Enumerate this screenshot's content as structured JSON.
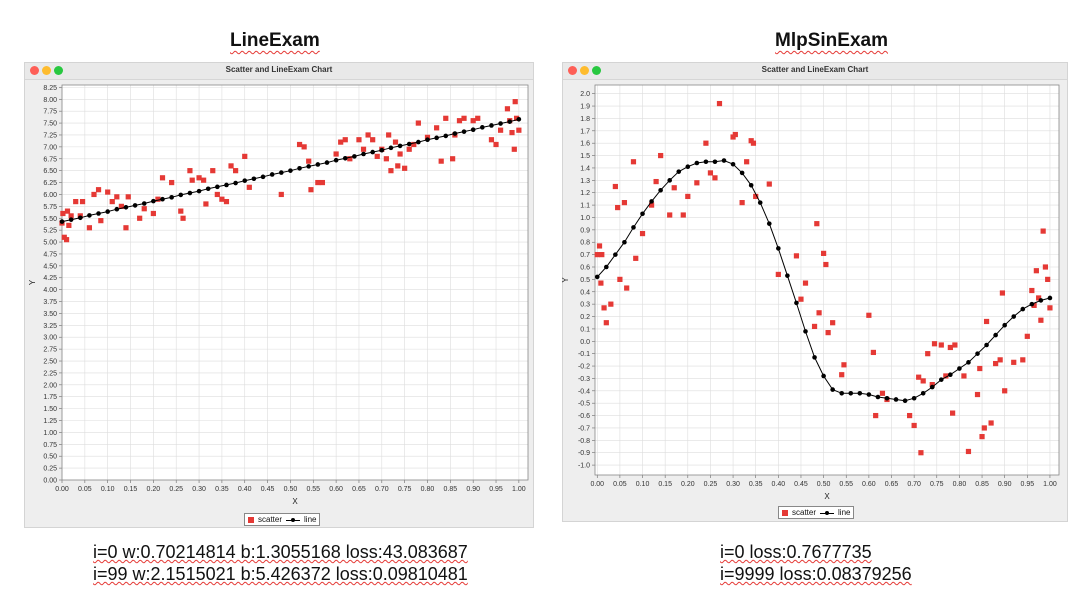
{
  "left": {
    "heading": "LineExam",
    "window_title": "Scatter and LineExam Chart",
    "caption_lines": [
      "i=0 w:0.70214814 b:1.3055168 loss:43.083687",
      "i=99 w:2.1515021 b:5.426372 loss:0.09810481"
    ]
  },
  "right": {
    "heading": "MlpSinExam",
    "window_title": "Scatter and LineExam Chart",
    "caption_lines": [
      "i=0 loss:0.7677735",
      "i=9999 loss:0.08379256"
    ]
  },
  "colors": {
    "scatter": "#e53935",
    "line": "#000000",
    "plot_bg": "#ffffff",
    "grid": "#dddddd"
  },
  "chart_data": [
    {
      "type": "scatter",
      "title": "Scatter and LineExam Chart",
      "xlabel": "X",
      "ylabel": "Y",
      "xlim": [
        0,
        1.02
      ],
      "ylim": [
        0,
        8.3
      ],
      "xticks": [
        "0.00",
        "0.05",
        "0.10",
        "0.15",
        "0.20",
        "0.25",
        "0.30",
        "0.35",
        "0.40",
        "0.45",
        "0.50",
        "0.55",
        "0.60",
        "0.65",
        "0.70",
        "0.75",
        "0.80",
        "0.85",
        "0.90",
        "0.95",
        "1.00"
      ],
      "yticks": [
        "0.00",
        "0.25",
        "0.50",
        "0.75",
        "1.00",
        "1.25",
        "1.50",
        "1.75",
        "2.00",
        "2.25",
        "2.50",
        "2.75",
        "3.00",
        "3.25",
        "3.50",
        "3.75",
        "4.00",
        "4.25",
        "4.50",
        "4.75",
        "5.00",
        "5.25",
        "5.50",
        "5.75",
        "6.00",
        "6.25",
        "6.50",
        "6.75",
        "7.00",
        "7.25",
        "7.50",
        "7.75",
        "8.00",
        "8.25"
      ],
      "grid": true,
      "legend": "bottom-center",
      "series": [
        {
          "name": "scatter",
          "marker": "square",
          "points": [
            [
              0.0,
              5.4
            ],
            [
              0.002,
              5.6
            ],
            [
              0.005,
              5.1
            ],
            [
              0.01,
              5.05
            ],
            [
              0.012,
              5.65
            ],
            [
              0.015,
              5.35
            ],
            [
              0.02,
              5.55
            ],
            [
              0.03,
              5.85
            ],
            [
              0.04,
              5.55
            ],
            [
              0.045,
              5.85
            ],
            [
              0.06,
              5.3
            ],
            [
              0.07,
              6.0
            ],
            [
              0.08,
              6.1
            ],
            [
              0.085,
              5.45
            ],
            [
              0.1,
              6.05
            ],
            [
              0.11,
              5.85
            ],
            [
              0.12,
              5.95
            ],
            [
              0.13,
              5.75
            ],
            [
              0.14,
              5.3
            ],
            [
              0.145,
              5.95
            ],
            [
              0.17,
              5.5
            ],
            [
              0.18,
              5.7
            ],
            [
              0.2,
              5.6
            ],
            [
              0.21,
              5.9
            ],
            [
              0.22,
              6.35
            ],
            [
              0.24,
              6.25
            ],
            [
              0.26,
              5.65
            ],
            [
              0.265,
              5.5
            ],
            [
              0.28,
              6.5
            ],
            [
              0.285,
              6.3
            ],
            [
              0.3,
              6.35
            ],
            [
              0.31,
              6.3
            ],
            [
              0.315,
              5.8
            ],
            [
              0.33,
              6.5
            ],
            [
              0.34,
              6.0
            ],
            [
              0.35,
              5.9
            ],
            [
              0.36,
              5.85
            ],
            [
              0.37,
              6.6
            ],
            [
              0.38,
              6.5
            ],
            [
              0.4,
              6.8
            ],
            [
              0.41,
              6.15
            ],
            [
              0.48,
              6.0
            ],
            [
              0.52,
              7.05
            ],
            [
              0.53,
              7.0
            ],
            [
              0.54,
              6.7
            ],
            [
              0.545,
              6.1
            ],
            [
              0.56,
              6.25
            ],
            [
              0.57,
              6.25
            ],
            [
              0.6,
              6.85
            ],
            [
              0.61,
              7.1
            ],
            [
              0.62,
              7.15
            ],
            [
              0.63,
              6.75
            ],
            [
              0.65,
              7.15
            ],
            [
              0.66,
              6.95
            ],
            [
              0.67,
              7.25
            ],
            [
              0.68,
              7.15
            ],
            [
              0.69,
              6.8
            ],
            [
              0.7,
              6.95
            ],
            [
              0.71,
              6.75
            ],
            [
              0.715,
              7.25
            ],
            [
              0.72,
              6.5
            ],
            [
              0.73,
              7.1
            ],
            [
              0.735,
              6.6
            ],
            [
              0.74,
              6.85
            ],
            [
              0.75,
              6.55
            ],
            [
              0.76,
              6.95
            ],
            [
              0.77,
              7.05
            ],
            [
              0.78,
              7.5
            ],
            [
              0.8,
              7.2
            ],
            [
              0.82,
              7.4
            ],
            [
              0.83,
              6.7
            ],
            [
              0.84,
              7.6
            ],
            [
              0.855,
              6.75
            ],
            [
              0.86,
              7.25
            ],
            [
              0.87,
              7.55
            ],
            [
              0.88,
              7.6
            ],
            [
              0.9,
              7.55
            ],
            [
              0.91,
              7.6
            ],
            [
              0.94,
              7.15
            ],
            [
              0.95,
              7.05
            ],
            [
              0.96,
              7.35
            ],
            [
              0.975,
              7.8
            ],
            [
              0.98,
              7.55
            ],
            [
              0.985,
              7.3
            ],
            [
              0.99,
              6.95
            ],
            [
              0.992,
              7.95
            ],
            [
              0.995,
              7.6
            ],
            [
              1.0,
              7.35
            ]
          ]
        },
        {
          "name": "line",
          "marker": "circle",
          "x": [
            0.0,
            0.02,
            0.04,
            0.06,
            0.08,
            0.1,
            0.12,
            0.14,
            0.16,
            0.18,
            0.2,
            0.22,
            0.24,
            0.26,
            0.28,
            0.3,
            0.32,
            0.34,
            0.36,
            0.38,
            0.4,
            0.42,
            0.44,
            0.46,
            0.48,
            0.5,
            0.52,
            0.54,
            0.56,
            0.58,
            0.6,
            0.62,
            0.64,
            0.66,
            0.68,
            0.7,
            0.72,
            0.74,
            0.76,
            0.78,
            0.8,
            0.82,
            0.84,
            0.86,
            0.88,
            0.9,
            0.92,
            0.94,
            0.96,
            0.98,
            1.0
          ],
          "y": [
            5.43,
            5.47,
            5.51,
            5.56,
            5.6,
            5.64,
            5.69,
            5.73,
            5.77,
            5.81,
            5.86,
            5.9,
            5.94,
            5.99,
            6.03,
            6.07,
            6.12,
            6.16,
            6.2,
            6.24,
            6.29,
            6.33,
            6.37,
            6.42,
            6.46,
            6.5,
            6.55,
            6.59,
            6.63,
            6.67,
            6.72,
            6.76,
            6.8,
            6.85,
            6.89,
            6.93,
            6.98,
            7.02,
            7.06,
            7.1,
            7.15,
            7.19,
            7.23,
            7.28,
            7.32,
            7.36,
            7.41,
            7.45,
            7.49,
            7.53,
            7.58
          ]
        }
      ]
    },
    {
      "type": "scatter",
      "title": "Scatter and LineExam Chart",
      "xlabel": "X",
      "ylabel": "Y",
      "xlim": [
        -0.005,
        1.02
      ],
      "ylim": [
        -1.08,
        2.07
      ],
      "xticks": [
        "0.00",
        "0.05",
        "0.10",
        "0.15",
        "0.20",
        "0.25",
        "0.30",
        "0.35",
        "0.40",
        "0.45",
        "0.50",
        "0.55",
        "0.60",
        "0.65",
        "0.70",
        "0.75",
        "0.80",
        "0.85",
        "0.90",
        "0.95",
        "1.00"
      ],
      "yticks": [
        "-1.0",
        "-0.9",
        "-0.8",
        "-0.7",
        "-0.6",
        "-0.5",
        "-0.4",
        "-0.3",
        "-0.2",
        "-0.1",
        "0.0",
        "0.1",
        "0.2",
        "0.3",
        "0.4",
        "0.5",
        "0.6",
        "0.7",
        "0.8",
        "0.9",
        "1.0",
        "1.1",
        "1.2",
        "1.3",
        "1.4",
        "1.5",
        "1.6",
        "1.7",
        "1.8",
        "1.9",
        "2.0"
      ],
      "grid": true,
      "legend": "bottom-center",
      "series": [
        {
          "name": "scatter",
          "marker": "square",
          "points": [
            [
              0.0,
              0.7
            ],
            [
              0.005,
              0.77
            ],
            [
              0.008,
              0.47
            ],
            [
              0.01,
              0.7
            ],
            [
              0.015,
              0.27
            ],
            [
              0.02,
              0.15
            ],
            [
              0.03,
              0.3
            ],
            [
              0.04,
              1.25
            ],
            [
              0.045,
              1.08
            ],
            [
              0.05,
              0.5
            ],
            [
              0.06,
              1.12
            ],
            [
              0.065,
              0.43
            ],
            [
              0.08,
              1.45
            ],
            [
              0.085,
              0.67
            ],
            [
              0.1,
              0.87
            ],
            [
              0.12,
              1.1
            ],
            [
              0.13,
              1.29
            ],
            [
              0.14,
              1.5
            ],
            [
              0.16,
              1.02
            ],
            [
              0.17,
              1.24
            ],
            [
              0.19,
              1.02
            ],
            [
              0.2,
              1.17
            ],
            [
              0.22,
              1.28
            ],
            [
              0.24,
              1.6
            ],
            [
              0.25,
              1.36
            ],
            [
              0.26,
              1.32
            ],
            [
              0.27,
              1.92
            ],
            [
              0.3,
              1.65
            ],
            [
              0.305,
              1.67
            ],
            [
              0.32,
              1.12
            ],
            [
              0.33,
              1.45
            ],
            [
              0.34,
              1.62
            ],
            [
              0.345,
              1.6
            ],
            [
              0.35,
              1.17
            ],
            [
              0.38,
              1.27
            ],
            [
              0.4,
              0.54
            ],
            [
              0.44,
              0.69
            ],
            [
              0.45,
              0.34
            ],
            [
              0.46,
              0.47
            ],
            [
              0.48,
              0.12
            ],
            [
              0.485,
              0.95
            ],
            [
              0.49,
              0.23
            ],
            [
              0.5,
              0.71
            ],
            [
              0.505,
              0.62
            ],
            [
              0.51,
              0.07
            ],
            [
              0.52,
              0.15
            ],
            [
              0.54,
              -0.27
            ],
            [
              0.545,
              -0.19
            ],
            [
              0.6,
              0.21
            ],
            [
              0.61,
              -0.09
            ],
            [
              0.615,
              -0.6
            ],
            [
              0.63,
              -0.42
            ],
            [
              0.64,
              -0.47
            ],
            [
              0.69,
              -0.6
            ],
            [
              0.7,
              -0.68
            ],
            [
              0.71,
              -0.29
            ],
            [
              0.715,
              -0.9
            ],
            [
              0.72,
              -0.32
            ],
            [
              0.73,
              -0.1
            ],
            [
              0.74,
              -0.35
            ],
            [
              0.745,
              -0.02
            ],
            [
              0.76,
              -0.03
            ],
            [
              0.77,
              -0.28
            ],
            [
              0.78,
              -0.05
            ],
            [
              0.785,
              -0.58
            ],
            [
              0.79,
              -0.03
            ],
            [
              0.81,
              -0.28
            ],
            [
              0.82,
              -0.89
            ],
            [
              0.84,
              -0.43
            ],
            [
              0.845,
              -0.22
            ],
            [
              0.85,
              -0.77
            ],
            [
              0.855,
              -0.7
            ],
            [
              0.86,
              0.16
            ],
            [
              0.87,
              -0.66
            ],
            [
              0.88,
              -0.18
            ],
            [
              0.89,
              -0.15
            ],
            [
              0.895,
              0.39
            ],
            [
              0.9,
              -0.4
            ],
            [
              0.92,
              -0.17
            ],
            [
              0.94,
              -0.15
            ],
            [
              0.95,
              0.04
            ],
            [
              0.96,
              0.41
            ],
            [
              0.965,
              0.29
            ],
            [
              0.97,
              0.57
            ],
            [
              0.975,
              0.35
            ],
            [
              0.98,
              0.17
            ],
            [
              0.985,
              0.89
            ],
            [
              0.99,
              0.6
            ],
            [
              0.995,
              0.5
            ],
            [
              1.0,
              0.27
            ]
          ]
        },
        {
          "name": "line",
          "marker": "circle",
          "x": [
            0.0,
            0.02,
            0.04,
            0.06,
            0.08,
            0.1,
            0.12,
            0.14,
            0.16,
            0.18,
            0.2,
            0.22,
            0.24,
            0.26,
            0.28,
            0.3,
            0.32,
            0.34,
            0.36,
            0.38,
            0.4,
            0.42,
            0.44,
            0.46,
            0.48,
            0.5,
            0.52,
            0.54,
            0.56,
            0.58,
            0.6,
            0.62,
            0.64,
            0.66,
            0.68,
            0.7,
            0.72,
            0.74,
            0.76,
            0.78,
            0.8,
            0.82,
            0.84,
            0.86,
            0.88,
            0.9,
            0.92,
            0.94,
            0.96,
            0.98,
            1.0
          ],
          "y": [
            0.52,
            0.6,
            0.7,
            0.8,
            0.92,
            1.03,
            1.13,
            1.22,
            1.3,
            1.37,
            1.41,
            1.44,
            1.45,
            1.45,
            1.46,
            1.43,
            1.36,
            1.26,
            1.12,
            0.95,
            0.75,
            0.53,
            0.31,
            0.08,
            -0.13,
            -0.28,
            -0.39,
            -0.42,
            -0.42,
            -0.42,
            -0.43,
            -0.45,
            -0.46,
            -0.47,
            -0.48,
            -0.46,
            -0.42,
            -0.37,
            -0.31,
            -0.27,
            -0.22,
            -0.17,
            -0.1,
            -0.03,
            0.05,
            0.13,
            0.2,
            0.26,
            0.3,
            0.33,
            0.35
          ]
        }
      ]
    }
  ]
}
